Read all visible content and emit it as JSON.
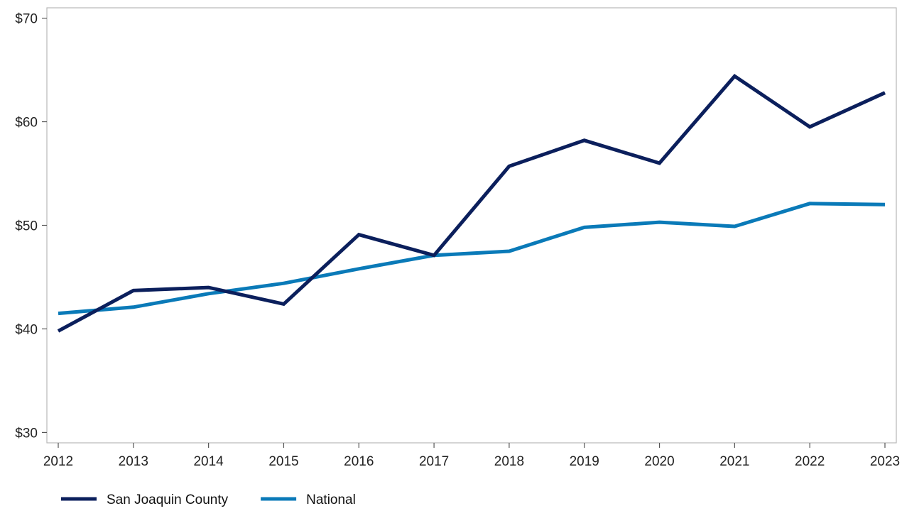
{
  "chart_data": {
    "type": "line",
    "title": "",
    "xlabel": "",
    "ylabel": "",
    "x": [
      "2012",
      "2013",
      "2014",
      "2015",
      "2016",
      "2017",
      "2018",
      "2019",
      "2020",
      "2021",
      "2022",
      "2023"
    ],
    "series": [
      {
        "name": "San Joaquin County",
        "color": "#0b1f5c",
        "values": [
          39.8,
          43.7,
          44.0,
          42.4,
          49.1,
          47.1,
          55.7,
          58.2,
          56.0,
          64.4,
          59.5,
          62.8
        ]
      },
      {
        "name": "National",
        "color": "#0a7ab8",
        "values": [
          41.5,
          42.1,
          43.4,
          44.4,
          45.8,
          47.1,
          47.5,
          49.8,
          50.3,
          49.9,
          52.1,
          52.0
        ]
      }
    ],
    "ylim": [
      29,
      71
    ],
    "y_ticks": [
      30,
      40,
      50,
      60,
      70
    ],
    "y_tick_labels": [
      "$30",
      "$40",
      "$50",
      "$60",
      "$70"
    ],
    "grid": false,
    "legend_position": "bottom-left"
  }
}
